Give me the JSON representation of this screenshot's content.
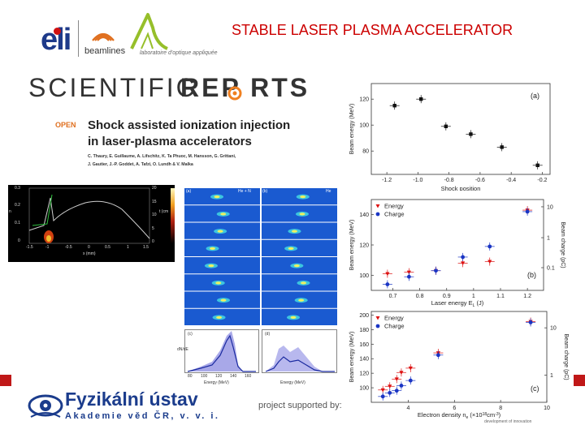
{
  "header": {
    "title": "STABLE LASER PLASMA ACCELERATOR",
    "eli_logo_text": "eli",
    "beamlines_text": "beamlines",
    "lab_text": "laboratoire d'optique appliquée"
  },
  "journal": {
    "name_left": "SCIENTIFIC",
    "name_right": "REP RTS",
    "open_label": "OPEN",
    "paper_title_line1": "Shock assisted ionization injection",
    "paper_title_line2": "in laser-plasma accelerators",
    "authors_line1": "C. Thaury, E. Guillaume, A. Lifschitz, K. Ta Phuoc, M. Hansson, G. Grittani,",
    "authors_line2": "J. Gautier, J.-P. Goddet, A. Tafzi, O. Lundh & V. Malka"
  },
  "footer": {
    "institute_name": "Fyzikální ústav",
    "institute_sub": "Akademie věd ČR, v. v. i.",
    "supported_text": "project supported by:",
    "small_text": "development of innovation"
  },
  "panel_a": {
    "label": "(a)",
    "xlabel": "Shock position",
    "ylabel": "Beam energy (MeV)",
    "xticks": [
      "-1.2",
      "-1.0",
      "-0.8",
      "-0.6",
      "-0.4",
      "-0.2"
    ],
    "yticks": [
      "80",
      "100",
      "120"
    ]
  },
  "panel_b": {
    "label": "(b)",
    "xlabel": "Laser energy E",
    "xlabel_sub": "L",
    "xlabel_unit": " (J)",
    "ylabel": "Beam energy (MeV)",
    "ylabel_right": "Beam charge (pC)",
    "xticks": [
      "0.7",
      "0.8",
      "0.9",
      "1",
      "1.1",
      "1.2"
    ],
    "yticks": [
      "100",
      "120",
      "140"
    ],
    "yticks_right": [
      "0.1",
      "1",
      "10"
    ],
    "legend": [
      "Energy",
      "Charge"
    ]
  },
  "panel_c": {
    "label": "(c)",
    "xlabel": "Electron density n",
    "xlabel_sub": "e",
    "xlabel_unit": " (×10",
    "xlabel_sup": "18",
    "xlabel_end": "cm",
    "xlabel_sup2": "-3",
    "xlabel_close": ")",
    "ylabel": "Beam energy (MeV)",
    "ylabel_right": "Beam charge (pC)",
    "xticks": [
      "4",
      "6",
      "8",
      "10"
    ],
    "yticks": [
      "100",
      "120",
      "140",
      "160",
      "180",
      "200"
    ],
    "yticks_right": [
      "1",
      "10"
    ],
    "legend": [
      "Energy",
      "Charge"
    ]
  },
  "sim_panel": {
    "yticks": [
      "0.3",
      "0.2",
      "0.1",
      "0"
    ],
    "yticks_right": [
      "20",
      "15",
      "10",
      "5",
      "0"
    ],
    "xticks": [
      "-1.5",
      "-1",
      "-0.5",
      "0",
      "0.5",
      "1",
      "1.5"
    ],
    "xlabel": "x (mm)",
    "ylabel": "n",
    "ylabel_right": "t (cm"
  },
  "spectra_panel": {
    "label_a": "(a)",
    "label_b": "(b)",
    "label_c": "(c)",
    "label_d": "(d)",
    "tag_a": "He + N",
    "tag_b": "He",
    "xlabel": "Energy (MeV)",
    "xticks": [
      "80",
      "100",
      "120",
      "140",
      "160"
    ],
    "ylabel": "dN/dE"
  },
  "colors": {
    "title": "#cc0000",
    "energy": "#dd1111",
    "charge": "#1a35c4",
    "spectra_bg": "#1a5ad0",
    "fzu_blue": "#1b3c8c"
  },
  "chart_data": [
    {
      "type": "scatter",
      "label": "(a)",
      "xlabel": "Shock position",
      "ylabel": "Beam energy (MeV)",
      "xlim": [
        -1.3,
        -0.15
      ],
      "ylim": [
        62,
        132
      ],
      "points": [
        [
          -1.15,
          115
        ],
        [
          -0.98,
          120
        ],
        [
          -0.82,
          99
        ],
        [
          -0.66,
          93
        ],
        [
          -0.46,
          83
        ],
        [
          -0.23,
          69
        ]
      ]
    },
    {
      "type": "scatter",
      "label": "(b)",
      "xlabel": "Laser energy E (J)",
      "ylabel": "Beam energy (MeV)",
      "xlim": [
        0.62,
        1.26
      ],
      "ylim": [
        90,
        150
      ],
      "series": [
        {
          "name": "Energy",
          "x": [
            0.68,
            0.76,
            0.86,
            0.96,
            1.06,
            1.2
          ],
          "y": [
            101,
            102,
            103,
            108,
            109,
            143
          ]
        },
        {
          "name": "Charge",
          "x": [
            0.68,
            0.76,
            0.86,
            0.96,
            1.06,
            1.2
          ],
          "y": [
            94,
            99,
            103,
            112,
            119,
            142
          ]
        }
      ]
    },
    {
      "type": "scatter",
      "label": "(c)",
      "xlabel": "Electron density n (x10^18 cm^-3)",
      "ylabel": "Beam energy (MeV)",
      "xlim": [
        2.4,
        10
      ],
      "ylim": [
        80,
        205
      ],
      "series": [
        {
          "name": "Energy",
          "x": [
            2.9,
            3.2,
            3.5,
            3.7,
            4.1,
            5.3,
            9.3
          ],
          "y": [
            97,
            102,
            112,
            121,
            127,
            148,
            191
          ]
        },
        {
          "name": "Charge",
          "x": [
            2.9,
            3.2,
            3.5,
            3.7,
            4.1,
            5.3,
            9.3
          ],
          "y": [
            88,
            93,
            96,
            103,
            110,
            145,
            190
          ]
        }
      ]
    }
  ]
}
